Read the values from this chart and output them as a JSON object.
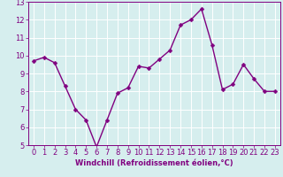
{
  "x": [
    0,
    1,
    2,
    3,
    4,
    5,
    6,
    7,
    8,
    9,
    10,
    11,
    12,
    13,
    14,
    15,
    16,
    17,
    18,
    19,
    20,
    21,
    22,
    23
  ],
  "y": [
    9.7,
    9.9,
    9.6,
    8.3,
    7.0,
    6.4,
    4.9,
    6.4,
    7.9,
    8.2,
    9.4,
    9.3,
    9.8,
    10.3,
    11.7,
    12.0,
    12.6,
    10.6,
    8.1,
    8.4,
    9.5,
    8.7,
    8.0,
    8.0
  ],
  "line_color": "#800080",
  "marker": "D",
  "marker_size": 2.5,
  "line_width": 1.0,
  "background_color": "#d6eeee",
  "grid_color": "#ffffff",
  "xlabel": "Windchill (Refroidissement éolien,°C)",
  "ylim": [
    5,
    13
  ],
  "xlim": [
    -0.5,
    23.5
  ],
  "yticks": [
    5,
    6,
    7,
    8,
    9,
    10,
    11,
    12,
    13
  ],
  "xticks": [
    0,
    1,
    2,
    3,
    4,
    5,
    6,
    7,
    8,
    9,
    10,
    11,
    12,
    13,
    14,
    15,
    16,
    17,
    18,
    19,
    20,
    21,
    22,
    23
  ],
  "tick_color": "#800080",
  "xlabel_fontsize": 6.0,
  "tick_fontsize": 6.0
}
